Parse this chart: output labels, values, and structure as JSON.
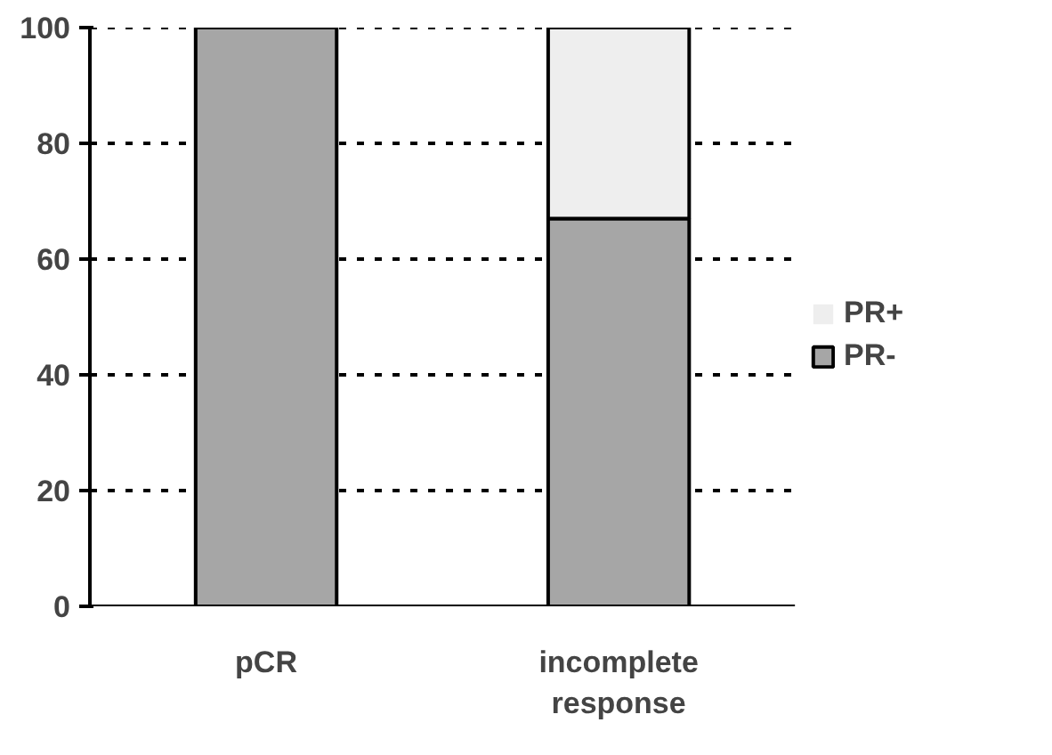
{
  "chart_data": {
    "type": "bar",
    "stacked": true,
    "categories": [
      "pCR",
      "incomplete\nresponse"
    ],
    "series": [
      {
        "name": "PR-",
        "color": "#a6a6a6",
        "values": [
          100,
          67
        ]
      },
      {
        "name": "PR+",
        "color": "#eeeeee",
        "values": [
          0,
          33
        ]
      }
    ],
    "ylim": [
      0,
      100
    ],
    "yticks": [
      0,
      20,
      40,
      60,
      80,
      100
    ],
    "grid": "y",
    "legend": "right"
  }
}
